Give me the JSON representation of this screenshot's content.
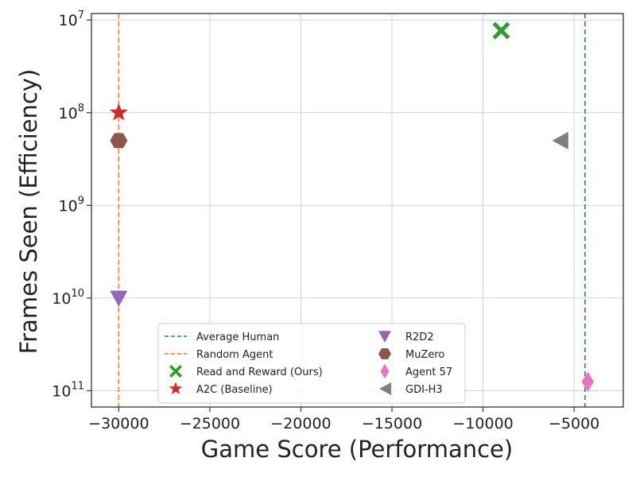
{
  "chart_data": {
    "type": "scatter",
    "title": "",
    "xlabel": "Game Score (Performance)",
    "ylabel": "Frames Seen (Efficiency)",
    "xlim": [
      -31500,
      -2300
    ],
    "y_scale": "log",
    "y_inverted": true,
    "ylim": [
      8500000.0,
      150000000000.0
    ],
    "grid": true,
    "legend_position": "lower-center",
    "x_ticks": [
      {
        "value": -30000,
        "label": "−30000"
      },
      {
        "value": -25000,
        "label": "−25000"
      },
      {
        "value": -20000,
        "label": "−20000"
      },
      {
        "value": -15000,
        "label": "−15000"
      },
      {
        "value": -10000,
        "label": "−10000"
      },
      {
        "value": -5000,
        "label": "−5000"
      }
    ],
    "y_ticks": [
      {
        "value": 10000000.0,
        "base": "10",
        "exp": "7"
      },
      {
        "value": 100000000.0,
        "base": "10",
        "exp": "8"
      },
      {
        "value": 1000000000.0,
        "base": "10",
        "exp": "9"
      },
      {
        "value": 10000000000.0,
        "base": "10",
        "exp": "10"
      },
      {
        "value": 100000000000.0,
        "base": "10",
        "exp": "11"
      }
    ],
    "reference_lines": [
      {
        "name": "Average Human",
        "x": -4400,
        "color": "#1f77b4"
      },
      {
        "name": "Random Agent",
        "x": -30000,
        "color": "#ff7f0e"
      }
    ],
    "series": [
      {
        "name": "Read and Reward (Ours)",
        "marker": "X",
        "color": "#2ca02c",
        "x": -9000,
        "y": 13000000.0
      },
      {
        "name": "A2C (Baseline)",
        "marker": "star",
        "color": "#d62728",
        "x": -30000,
        "y": 100000000.0
      },
      {
        "name": "R2D2",
        "marker": "triangle-down",
        "color": "#9467bd",
        "x": -30000,
        "y": 10000000000.0
      },
      {
        "name": "MuZero",
        "marker": "hexagon",
        "color": "#8c564b",
        "x": -30000,
        "y": 200000000.0
      },
      {
        "name": "Agent 57",
        "marker": "diamond",
        "color": "#e377c2",
        "x": -4250,
        "y": 80000000000.0
      },
      {
        "name": "GDI-H3",
        "marker": "triangle-left",
        "color": "#7f7f7f",
        "x": -5800,
        "y": 200000000.0
      }
    ],
    "legend": [
      {
        "label": "Average Human",
        "kind": "line",
        "color": "#1f77b4"
      },
      {
        "label": "Random Agent",
        "kind": "line",
        "color": "#ff7f0e"
      },
      {
        "label": "Read and Reward (Ours)",
        "kind": "marker",
        "marker": "X",
        "color": "#2ca02c"
      },
      {
        "label": "A2C (Baseline)",
        "kind": "marker",
        "marker": "star",
        "color": "#d62728"
      },
      {
        "label": "R2D2",
        "kind": "marker",
        "marker": "triangle-down",
        "color": "#9467bd"
      },
      {
        "label": "MuZero",
        "kind": "marker",
        "marker": "hexagon",
        "color": "#8c564b"
      },
      {
        "label": "Agent 57",
        "kind": "marker",
        "marker": "diamond",
        "color": "#e377c2"
      },
      {
        "label": "GDI-H3",
        "kind": "marker",
        "marker": "triangle-left",
        "color": "#7f7f7f"
      }
    ]
  }
}
